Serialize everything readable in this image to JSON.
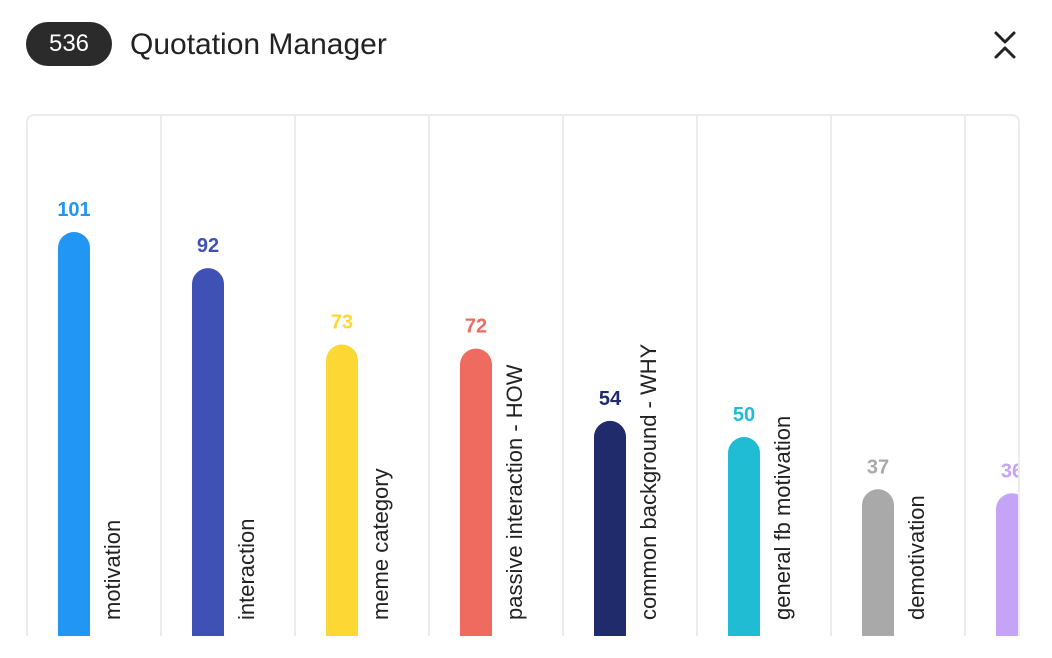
{
  "header": {
    "count": "536",
    "title": "Quotation Manager"
  },
  "icons": {
    "collapse": "collapse-chevrons-icon"
  },
  "chart_data": {
    "type": "bar",
    "categories": [
      "motivation",
      "interaction",
      "meme category",
      "passive interaction - HOW",
      "common background - WHY",
      "general fb motivation",
      "demotivation",
      ""
    ],
    "values": [
      101,
      92,
      73,
      72,
      54,
      50,
      37,
      36
    ],
    "value_labels": [
      "101",
      "92",
      "73",
      "72",
      "54",
      "50",
      "37",
      "36"
    ],
    "colors": [
      "#2196f3",
      "#3f51b5",
      "#fdd835",
      "#ef6b5f",
      "#1f2b6b",
      "#1fbcd4",
      "#a9a9a9",
      "#c5a3f7"
    ],
    "ylim": [
      0,
      101
    ],
    "grid": "vertical separators"
  }
}
